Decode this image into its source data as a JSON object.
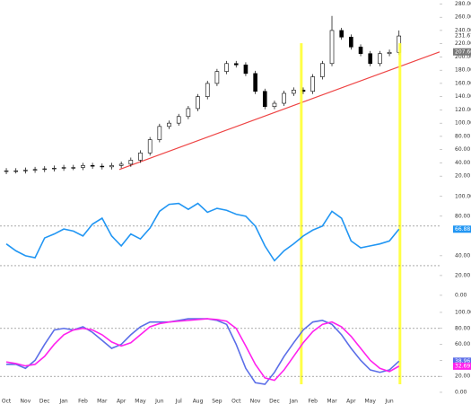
{
  "chart_data": [
    {
      "type": "candlestick",
      "color_up": "#ffffff",
      "color_down": "#000000",
      "x": [
        0,
        0.5,
        1,
        1.5,
        2,
        2.5,
        3,
        3.5,
        4,
        4.5,
        5,
        5.5,
        6,
        6.5,
        7,
        7.5,
        8,
        8.5,
        9,
        9.5,
        10,
        10.5,
        11,
        11.5,
        12,
        12.5,
        13,
        13.5,
        14,
        14.5,
        15,
        15.5,
        16,
        16.5,
        17,
        17.5,
        18,
        18.5,
        19,
        19.5,
        20,
        20.5
      ],
      "open": [
        27,
        28,
        28,
        29,
        30,
        31,
        32,
        33,
        33,
        36,
        35,
        34,
        36,
        38,
        44,
        55,
        75,
        95,
        100,
        110,
        122,
        140,
        160,
        178,
        190,
        188,
        175,
        148,
        125,
        130,
        145,
        150,
        148,
        170,
        190,
        240,
        230,
        215,
        205,
        190,
        205,
        207
      ],
      "high": [
        32,
        32,
        33,
        34,
        35,
        36,
        37,
        37,
        40,
        40,
        39,
        40,
        42,
        48,
        59,
        79,
        99,
        104,
        114,
        126,
        144,
        164,
        182,
        194,
        194,
        192,
        179,
        152,
        134,
        149,
        154,
        154,
        174,
        194,
        262,
        244,
        234,
        219,
        209,
        209,
        211,
        240
      ],
      "low": [
        23,
        24,
        24,
        25,
        26,
        27,
        28,
        29,
        29,
        31,
        30,
        30,
        32,
        34,
        40,
        51,
        71,
        91,
        96,
        106,
        118,
        136,
        156,
        174,
        184,
        171,
        144,
        121,
        121,
        126,
        141,
        144,
        144,
        166,
        186,
        226,
        211,
        201,
        186,
        186,
        201,
        203
      ],
      "close": [
        28,
        28,
        29,
        30,
        31,
        32,
        33,
        33,
        36,
        35,
        34,
        36,
        38,
        44,
        55,
        75,
        95,
        100,
        110,
        122,
        140,
        160,
        178,
        190,
        188,
        175,
        148,
        125,
        130,
        145,
        150,
        148,
        170,
        190,
        240,
        230,
        215,
        205,
        190,
        205,
        207,
        231.67
      ],
      "trendline": {
        "color": "#ee4444",
        "x": [
          5.9,
          22.62
        ],
        "values": [
          30,
          207.66
        ]
      },
      "highlights": {
        "color": "#ffff33",
        "x": [
          15.4,
          20.55
        ]
      },
      "xlim": [
        -0.33,
        22.62
      ],
      "ylim": [
        8,
        286
      ],
      "yticks": [
        {
          "value": 20,
          "label": "20.00"
        },
        {
          "value": 40,
          "label": "40.00"
        },
        {
          "value": 60,
          "label": "60.00"
        },
        {
          "value": 80,
          "label": "80.00"
        },
        {
          "value": 100,
          "label": "100.00"
        },
        {
          "value": 120,
          "label": "120.00"
        },
        {
          "value": 140,
          "label": "140.00"
        },
        {
          "value": 160,
          "label": "160.00"
        },
        {
          "value": 180,
          "label": "180.00"
        },
        {
          "value": 200,
          "label": "200.00"
        },
        {
          "value": 220,
          "label": "220.00"
        },
        {
          "value": 240,
          "label": "240.00"
        },
        {
          "value": 260,
          "label": "260.00"
        },
        {
          "value": 280,
          "label": "280.00"
        }
      ]
    },
    {
      "type": "line",
      "x": [
        0,
        0.5,
        1,
        1.5,
        2,
        2.5,
        3,
        3.5,
        4,
        4.5,
        5,
        5.5,
        6,
        6.5,
        7,
        7.5,
        8,
        8.5,
        9,
        9.5,
        10,
        10.5,
        11,
        11.5,
        12,
        12.5,
        13,
        13.5,
        14,
        14.5,
        15,
        15.5,
        16,
        16.5,
        17,
        17.5,
        18,
        18.5,
        19,
        19.5,
        20,
        20.5
      ],
      "series": [
        {
          "color": "#2196f3",
          "values": [
            52,
            45,
            40,
            38,
            58,
            62,
            67,
            65,
            60,
            72,
            78,
            60,
            50,
            62,
            57,
            68,
            85,
            92,
            93,
            87,
            93,
            84,
            88,
            86,
            82,
            80,
            70,
            50,
            35,
            45,
            52,
            60,
            66,
            70,
            85,
            78,
            55,
            48,
            50,
            52,
            55,
            66.88
          ]
        }
      ],
      "reference_lines": [
        70,
        30
      ],
      "xlim": [
        -0.33,
        22.62
      ],
      "ylim": [
        -5.5,
        108
      ],
      "yticks": [
        {
          "value": 0,
          "label": "0.00"
        },
        {
          "value": 20,
          "label": "20.00"
        },
        {
          "value": 40,
          "label": "40.00"
        },
        {
          "value": 80,
          "label": "80.00"
        },
        {
          "value": 100,
          "label": "100.00"
        }
      ]
    },
    {
      "type": "line",
      "x": [
        0,
        0.5,
        1,
        1.5,
        2,
        2.5,
        3,
        3.5,
        4,
        4.5,
        5,
        5.5,
        6,
        6.5,
        7,
        7.5,
        8,
        8.5,
        9,
        9.5,
        10,
        10.5,
        11,
        11.5,
        12,
        12.5,
        13,
        13.5,
        14,
        14.5,
        15,
        15.5,
        16,
        16.5,
        17,
        17.5,
        18,
        18.5,
        19,
        19.5,
        20,
        20.5
      ],
      "series": [
        {
          "color": "#5b6ee8",
          "values": [
            35,
            35,
            30,
            40,
            60,
            78,
            80,
            78,
            82,
            75,
            65,
            55,
            60,
            72,
            82,
            88,
            88,
            88,
            90,
            92,
            92,
            92,
            90,
            85,
            60,
            30,
            12,
            10,
            25,
            45,
            62,
            78,
            88,
            90,
            85,
            72,
            55,
            40,
            28,
            25,
            28,
            38.96
          ]
        },
        {
          "color": "#ff22ee",
          "values": [
            38,
            36,
            33,
            35,
            45,
            60,
            72,
            78,
            80,
            78,
            72,
            63,
            58,
            62,
            72,
            82,
            86,
            88,
            89,
            90,
            91,
            92,
            91,
            89,
            80,
            58,
            35,
            18,
            15,
            28,
            45,
            62,
            76,
            85,
            88,
            82,
            70,
            55,
            40,
            30,
            26,
            32.69
          ]
        }
      ],
      "reference_lines": [
        80,
        20
      ],
      "xlim": [
        -0.33,
        22.62
      ],
      "ylim": [
        -3.4,
        111.2
      ],
      "yticks": [
        {
          "value": 0,
          "label": "0.00"
        },
        {
          "value": 20,
          "label": "20.00"
        },
        {
          "value": 40,
          "label": "40.00"
        },
        {
          "value": 60,
          "label": "60.00"
        },
        {
          "value": 80,
          "label": "80.00"
        },
        {
          "value": 100,
          "label": "100.00"
        }
      ],
      "xticks": [
        {
          "value": 0,
          "label": "Oct"
        },
        {
          "value": 1,
          "label": "Nov"
        },
        {
          "value": 2,
          "label": "Dec"
        },
        {
          "value": 3,
          "label": "Jan"
        },
        {
          "value": 4,
          "label": "Feb"
        },
        {
          "value": 5,
          "label": "Mar"
        },
        {
          "value": 6,
          "label": "Apr"
        },
        {
          "value": 7,
          "label": "May"
        },
        {
          "value": 8,
          "label": "Jun"
        },
        {
          "value": 9,
          "label": "Jul"
        },
        {
          "value": 10,
          "label": "Aug"
        },
        {
          "value": 11,
          "label": "Sep"
        },
        {
          "value": 12,
          "label": "Oct"
        },
        {
          "value": 13,
          "label": "Nov"
        },
        {
          "value": 14,
          "label": "Dec"
        },
        {
          "value": 15,
          "label": "Jan"
        },
        {
          "value": 16,
          "label": "Feb"
        },
        {
          "value": 17,
          "label": "Mar"
        },
        {
          "value": 18,
          "label": "Apr"
        },
        {
          "value": 19,
          "label": "May"
        },
        {
          "value": 20,
          "label": "Jun"
        }
      ]
    }
  ]
}
